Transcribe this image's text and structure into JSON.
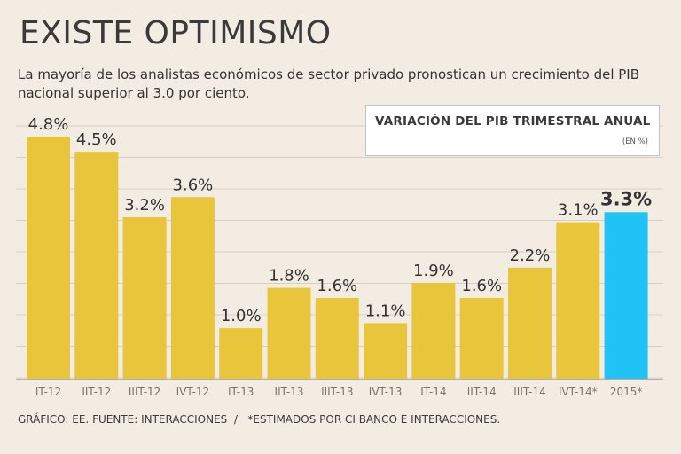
{
  "title": "EXISTE OPTIMISMO",
  "subtitle": "La mayoría de los analistas económicos de sector privado pronostican un crecimiento del PIB nacional superior al 3.0 por ciento.",
  "legend": {
    "title": "VARIACIÓN DEL PIB TRIMESTRAL ANUAL",
    "unit": "(EN %)"
  },
  "footer": "GRÁFICO: EE. FUENTE: INTERACCIONES  /   *ESTIMADOS POR CI BANCO E INTERACCIONES.",
  "colors": {
    "bar": "#e8c53a",
    "highlight": "#1fc3f5",
    "gridline": "#d6cfc6",
    "axis": "#b5ada3"
  },
  "chart_data": {
    "type": "bar",
    "title": "VARIACIÓN DEL PIB TRIMESTRAL ANUAL",
    "ylabel": "(EN %)",
    "xlabel": "",
    "categories": [
      "IT-12",
      "IIT-12",
      "IIIT-12",
      "IVT-12",
      "IT-13",
      "IIT-13",
      "IIIT-13",
      "IVT-13",
      "IT-14",
      "IIT-14",
      "IIIT-14",
      "IVT-14*",
      "2015*"
    ],
    "values": [
      4.8,
      4.5,
      3.2,
      3.6,
      1.0,
      1.8,
      1.6,
      1.1,
      1.9,
      1.6,
      2.2,
      3.1,
      3.3
    ],
    "labels": [
      "4.8%",
      "4.5%",
      "3.2%",
      "3.6%",
      "1.0%",
      "1.8%",
      "1.6%",
      "1.1%",
      "1.9%",
      "1.6%",
      "2.2%",
      "3.1%",
      "3.3%"
    ],
    "highlight_index": 12,
    "ylim": [
      0,
      5
    ],
    "grid": true
  }
}
